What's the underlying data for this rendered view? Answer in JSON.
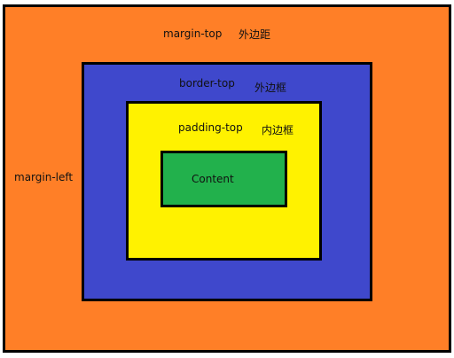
{
  "colors": {
    "margin": "#FF7F27",
    "border": "#3F48CC",
    "padding": "#FFF200",
    "content": "#22B14C",
    "outline": "#000000"
  },
  "labels": {
    "margin_top": "margin-top",
    "margin_top_cn": "外边距",
    "margin_left": "margin-left",
    "border_top": "border-top",
    "border_top_cn": "外边框",
    "padding_top": "padding-top",
    "padding_top_cn": "内边框",
    "content": "Content"
  }
}
